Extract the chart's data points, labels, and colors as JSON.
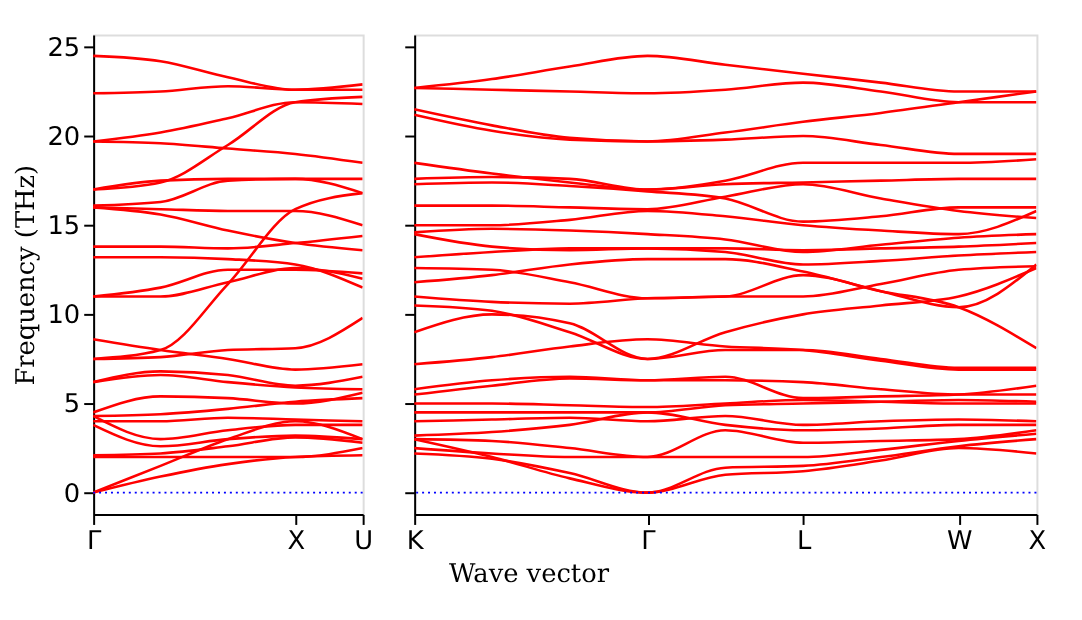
{
  "chart_data": [
    {
      "type": "line",
      "ylabel": "Frequency (THz)",
      "categories": [
        "Γ",
        null,
        null,
        "X",
        "U"
      ],
      "ylim": [
        -1.2,
        25.7
      ],
      "yticks": [
        0,
        5,
        10,
        15,
        20,
        25
      ],
      "grid": false,
      "line_style": "solid",
      "marker": "none",
      "ref_lines": [
        {
          "axis": "y",
          "value": 0,
          "color": "#0000ff",
          "line_style": "dotted"
        }
      ],
      "series": [
        {
          "color": "#ff0000",
          "values": [
            24.5,
            24.2,
            23.3,
            22.6,
            22.6
          ]
        },
        {
          "color": "#ff0000",
          "values": [
            22.4,
            22.5,
            22.8,
            22.6,
            22.9
          ]
        },
        {
          "color": "#ff0000",
          "values": [
            19.7,
            20.2,
            21.0,
            21.9,
            21.8
          ]
        },
        {
          "color": "#ff0000",
          "values": [
            19.7,
            19.6,
            19.3,
            19.0,
            18.5
          ]
        },
        {
          "color": "#ff0000",
          "values": [
            17.0,
            17.4,
            19.5,
            21.9,
            22.2
          ]
        },
        {
          "color": "#ff0000",
          "values": [
            17.0,
            17.5,
            17.6,
            17.6,
            17.6
          ]
        },
        {
          "color": "#ff0000",
          "values": [
            16.1,
            16.3,
            17.5,
            17.6,
            16.8
          ]
        },
        {
          "color": "#ff0000",
          "values": [
            16.0,
            15.9,
            15.8,
            15.8,
            15.0
          ]
        },
        {
          "color": "#ff0000",
          "values": [
            16.0,
            15.6,
            14.7,
            14.0,
            13.6
          ]
        },
        {
          "color": "#ff0000",
          "values": [
            13.8,
            13.8,
            13.7,
            14.0,
            14.4
          ]
        },
        {
          "color": "#ff0000",
          "values": [
            13.2,
            13.2,
            13.1,
            12.8,
            11.5
          ]
        },
        {
          "color": "#ff0000",
          "values": [
            11.0,
            11.0,
            11.8,
            12.6,
            12.0
          ]
        },
        {
          "color": "#ff0000",
          "values": [
            11.0,
            11.5,
            12.5,
            12.5,
            12.3
          ]
        },
        {
          "color": "#ff0000",
          "values": [
            7.5,
            8.0,
            11.7,
            15.9,
            16.8
          ]
        },
        {
          "color": "#ff0000",
          "values": [
            8.6,
            8.0,
            7.5,
            6.9,
            7.2
          ]
        },
        {
          "color": "#ff0000",
          "values": [
            7.5,
            7.6,
            8.0,
            8.1,
            9.8
          ]
        },
        {
          "color": "#ff0000",
          "values": [
            6.2,
            6.8,
            6.6,
            6.0,
            6.5
          ]
        },
        {
          "color": "#ff0000",
          "values": [
            6.2,
            6.6,
            6.2,
            5.9,
            5.8
          ]
        },
        {
          "color": "#ff0000",
          "values": [
            4.5,
            5.4,
            5.3,
            5.0,
            5.6
          ]
        },
        {
          "color": "#ff0000",
          "values": [
            4.3,
            4.4,
            4.7,
            5.1,
            5.3
          ]
        },
        {
          "color": "#ff0000",
          "values": [
            4.0,
            4.0,
            4.2,
            4.1,
            4.0
          ]
        },
        {
          "color": "#ff0000",
          "values": [
            4.3,
            3.0,
            3.5,
            3.8,
            3.8
          ]
        },
        {
          "color": "#ff0000",
          "values": [
            3.8,
            2.6,
            3.0,
            3.2,
            3.0
          ]
        },
        {
          "color": "#ff0000",
          "values": [
            2.1,
            2.2,
            2.6,
            3.1,
            2.8
          ]
        },
        {
          "color": "#ff0000",
          "values": [
            2.0,
            2.0,
            2.0,
            2.0,
            2.5
          ]
        },
        {
          "color": "#ff0000",
          "values": [
            0,
            0.9,
            1.6,
            2.0,
            2.1
          ]
        },
        {
          "color": "#ff0000",
          "values": [
            0,
            1.5,
            3.0,
            4.0,
            3.0
          ]
        }
      ]
    },
    {
      "type": "line",
      "xlabel": "Wave vector",
      "categories": [
        "K",
        null,
        null,
        "Γ",
        null,
        "L",
        null,
        "W",
        "X"
      ],
      "ylim": [
        -1.2,
        25.7
      ],
      "yticks": [
        {
          "value": 0,
          "label": null
        },
        {
          "value": 5,
          "label": null
        },
        {
          "value": 10,
          "label": null
        },
        {
          "value": 15,
          "label": null
        },
        {
          "value": 20,
          "label": null
        },
        {
          "value": 25,
          "label": null
        }
      ],
      "tick_labels": "x",
      "grid": false,
      "line_style": "solid",
      "marker": "none",
      "ref_lines": [
        {
          "axis": "y",
          "value": 0,
          "color": "#0000ff",
          "line_style": "dotted"
        }
      ],
      "series": [
        {
          "color": "#ff0000",
          "values": [
            22.7,
            23.2,
            23.9,
            24.5,
            24.0,
            23.5,
            23.0,
            22.5,
            22.5
          ]
        },
        {
          "color": "#ff0000",
          "values": [
            22.7,
            22.6,
            22.5,
            22.4,
            22.6,
            23.0,
            22.5,
            21.9,
            21.9
          ]
        },
        {
          "color": "#ff0000",
          "values": [
            21.5,
            20.6,
            19.9,
            19.7,
            20.2,
            20.8,
            21.3,
            21.9,
            22.5
          ]
        },
        {
          "color": "#ff0000",
          "values": [
            21.2,
            20.3,
            19.8,
            19.7,
            19.8,
            20.0,
            19.5,
            19.0,
            19.0
          ]
        },
        {
          "color": "#ff0000",
          "values": [
            18.5,
            17.9,
            17.4,
            17.0,
            17.5,
            18.5,
            18.5,
            18.5,
            18.7
          ]
        },
        {
          "color": "#ff0000",
          "values": [
            17.6,
            17.7,
            17.6,
            17.0,
            17.3,
            17.4,
            17.5,
            17.6,
            17.6
          ]
        },
        {
          "color": "#ff0000",
          "values": [
            17.3,
            17.4,
            17.2,
            16.9,
            16.5,
            15.2,
            15.5,
            16.0,
            16.0
          ]
        },
        {
          "color": "#ff0000",
          "values": [
            16.1,
            16.1,
            16.0,
            15.9,
            16.6,
            17.3,
            16.5,
            15.8,
            15.4
          ]
        },
        {
          "color": "#ff0000",
          "values": [
            15.0,
            15.0,
            15.3,
            15.8,
            15.5,
            15.0,
            14.7,
            14.5,
            15.8
          ]
        },
        {
          "color": "#ff0000",
          "values": [
            14.6,
            14.8,
            14.7,
            14.5,
            14.2,
            13.5,
            13.9,
            14.3,
            14.5
          ]
        },
        {
          "color": "#ff0000",
          "values": [
            14.5,
            13.8,
            13.6,
            13.7,
            13.7,
            13.6,
            13.7,
            13.8,
            14.0
          ]
        },
        {
          "color": "#ff0000",
          "values": [
            13.2,
            13.5,
            13.7,
            13.7,
            13.5,
            12.8,
            13.0,
            13.3,
            13.5
          ]
        },
        {
          "color": "#ff0000",
          "values": [
            12.6,
            12.5,
            11.8,
            10.9,
            11.0,
            11.0,
            11.7,
            12.5,
            12.7
          ]
        },
        {
          "color": "#ff0000",
          "values": [
            11.8,
            12.2,
            12.8,
            13.1,
            13.1,
            12.4,
            11.3,
            10.4,
            12.8
          ]
        },
        {
          "color": "#ff0000",
          "values": [
            11.0,
            10.7,
            10.6,
            10.9,
            11.0,
            12.2,
            11.3,
            10.4,
            8.1
          ]
        },
        {
          "color": "#ff0000",
          "values": [
            9.0,
            10.0,
            9.5,
            7.5,
            9.0,
            10.0,
            10.5,
            11.0,
            12.6
          ]
        },
        {
          "color": "#ff0000",
          "values": [
            10.5,
            10.2,
            9.0,
            7.5,
            8.0,
            8.0,
            7.5,
            7.0,
            7.0
          ]
        },
        {
          "color": "#ff0000",
          "values": [
            7.2,
            7.6,
            8.2,
            8.6,
            8.2,
            8.0,
            7.4,
            6.9,
            6.9
          ]
        },
        {
          "color": "#ff0000",
          "values": [
            5.8,
            6.3,
            6.5,
            6.3,
            6.3,
            6.2,
            5.8,
            5.5,
            5.5
          ]
        },
        {
          "color": "#ff0000",
          "values": [
            5.5,
            6.0,
            6.4,
            6.3,
            6.5,
            5.3,
            5.4,
            5.5,
            6.0
          ]
        },
        {
          "color": "#ff0000",
          "values": [
            5.0,
            5.0,
            4.9,
            4.8,
            5.0,
            5.2,
            5.1,
            5.0,
            5.0
          ]
        },
        {
          "color": "#ff0000",
          "values": [
            4.5,
            4.5,
            4.5,
            4.5,
            4.9,
            5.0,
            5.1,
            5.2,
            5.1
          ]
        },
        {
          "color": "#ff0000",
          "values": [
            4.0,
            4.1,
            4.2,
            4.0,
            4.3,
            3.8,
            4.0,
            4.1,
            4.0
          ]
        },
        {
          "color": "#ff0000",
          "values": [
            3.2,
            3.4,
            3.8,
            4.5,
            3.8,
            3.5,
            3.6,
            3.8,
            3.8
          ]
        },
        {
          "color": "#ff0000",
          "values": [
            3.0,
            2.9,
            2.5,
            2.0,
            3.5,
            2.8,
            2.9,
            3.0,
            3.5
          ]
        },
        {
          "color": "#ff0000",
          "values": [
            2.5,
            2.2,
            2.0,
            2.0,
            2.0,
            2.0,
            2.4,
            2.9,
            3.3
          ]
        },
        {
          "color": "#ff0000",
          "values": [
            2.2,
            1.9,
            1.1,
            0,
            1.4,
            1.5,
            2.0,
            2.6,
            3.0
          ]
        },
        {
          "color": "#ff0000",
          "values": [
            3.0,
            2.0,
            0.8,
            0,
            1.0,
            1.2,
            1.8,
            2.5,
            2.2
          ]
        }
      ]
    }
  ]
}
